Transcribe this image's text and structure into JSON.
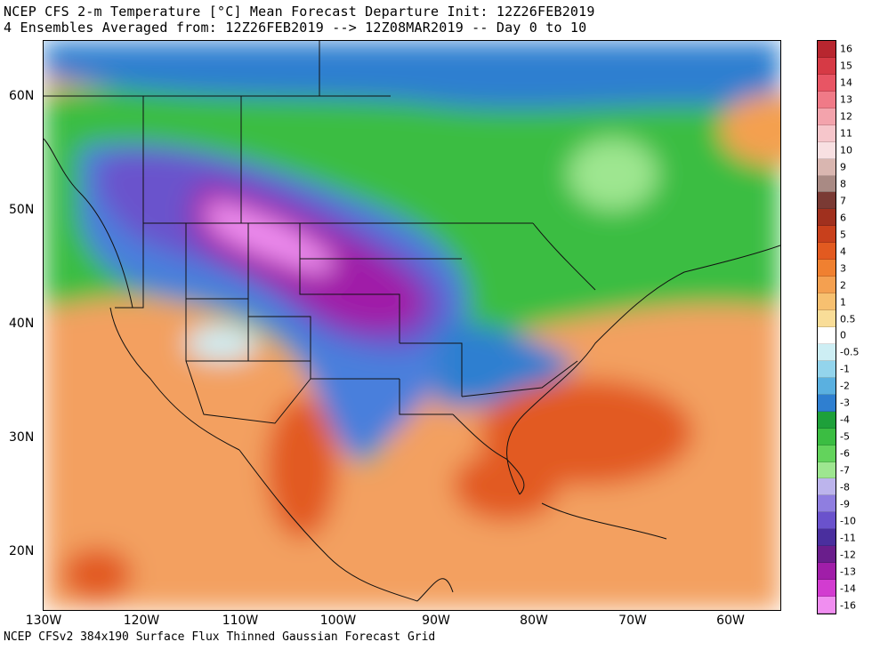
{
  "header": {
    "line1": "NCEP CFS 2-m Temperature [°C] Mean Forecast Departure Init: 12Z26FEB2019",
    "line2": "4 Ensembles Averaged from: 12Z26FEB2019 --> 12Z08MAR2019 -- Day 0 to 10"
  },
  "footer": "NCEP CFSv2 384x190 Surface Flux Thinned Gaussian Forecast Grid",
  "map": {
    "lat_labels": [
      "60N",
      "50N",
      "40N",
      "30N",
      "20N"
    ],
    "lon_labels": [
      "130W",
      "120W",
      "110W",
      "100W",
      "90W",
      "80W",
      "70W",
      "60W"
    ],
    "extent": {
      "lon_min": -130,
      "lon_max": -55,
      "lat_min": 15,
      "lat_max": 65
    }
  },
  "colorbar": {
    "labels": [
      "16",
      "15",
      "14",
      "13",
      "12",
      "11",
      "10",
      "9",
      "8",
      "7",
      "6",
      "5",
      "4",
      "3",
      "2",
      "1",
      "0.5",
      "0",
      "-0.5",
      "-1",
      "-2",
      "-3",
      "-4",
      "-5",
      "-6",
      "-7",
      "-8",
      "-9",
      "-10",
      "-11",
      "-12",
      "-13",
      "-14",
      "-16"
    ],
    "colors": [
      "#b8262f",
      "#d63a45",
      "#e85564",
      "#f07a87",
      "#f3a3ac",
      "#f6c6cb",
      "#f8e0e2",
      "#d9b6b0",
      "#a98a84",
      "#7a3a34",
      "#a0301e",
      "#c8401c",
      "#e25a20",
      "#f08030",
      "#f4a050",
      "#f7c070",
      "#f9dd98",
      "#ffffff",
      "#cdeef4",
      "#93d4ec",
      "#5ab0e0",
      "#2f7fd0",
      "#1ea03a",
      "#3bbd42",
      "#63d35c",
      "#9ee690",
      "#bcb4ec",
      "#8f7ee0",
      "#6a52cc",
      "#4a2f9e",
      "#6a1e8c",
      "#a01ea8",
      "#d23cd0",
      "#f08ef0"
    ]
  }
}
